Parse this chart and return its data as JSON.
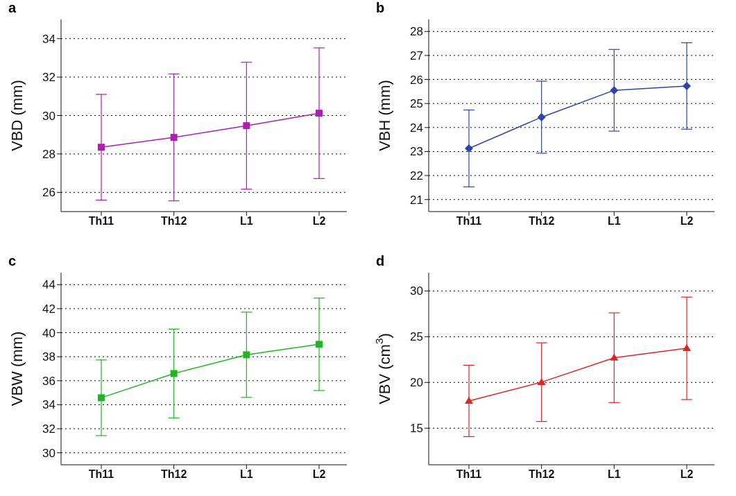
{
  "chart_data": [
    {
      "type": "line",
      "title": "a",
      "ylabel": "VBD (mm)",
      "categories": [
        "Th11",
        "Th12",
        "L1",
        "L2"
      ],
      "values": [
        28.35,
        28.86,
        29.47,
        30.12
      ],
      "errors": [
        2.75,
        3.3,
        3.3,
        3.4
      ],
      "color": "#b01eb0",
      "marker": "square",
      "ylim": [
        25,
        35
      ],
      "yticks": [
        26,
        28,
        30,
        32,
        34
      ],
      "grid": "y",
      "legend": false
    },
    {
      "type": "line",
      "title": "b",
      "ylabel": "VBH (mm)",
      "categories": [
        "Th11",
        "Th12",
        "L1",
        "L2"
      ],
      "values": [
        23.13,
        24.43,
        25.55,
        25.73
      ],
      "errors": [
        1.6,
        1.5,
        1.7,
        1.8
      ],
      "color": "#2e44a8",
      "marker": "diamond",
      "ylim": [
        20.5,
        28.5
      ],
      "yticks": [
        21,
        22,
        23,
        24,
        25,
        26,
        27,
        28
      ],
      "grid": "y",
      "legend": false
    },
    {
      "type": "line",
      "title": "c",
      "ylabel": "VBW (mm)",
      "categories": [
        "Th11",
        "Th12",
        "L1",
        "L2"
      ],
      "values": [
        34.58,
        36.6,
        38.16,
        39.03
      ],
      "errors": [
        3.15,
        3.7,
        3.55,
        3.85
      ],
      "color": "#22b522",
      "marker": "square",
      "ylim": [
        29,
        45
      ],
      "yticks": [
        30,
        32,
        34,
        36,
        38,
        40,
        42,
        44
      ],
      "grid": "y",
      "legend": false
    },
    {
      "type": "line",
      "title": "d",
      "ylabel": "VBV (cm$^{3}$)",
      "categories": [
        "Th11",
        "Th12",
        "L1",
        "L2"
      ],
      "values": [
        17.98,
        20.03,
        22.7,
        23.73
      ],
      "errors": [
        3.9,
        4.3,
        4.9,
        5.6
      ],
      "color": "#e02424",
      "marker": "triangle",
      "ylim": [
        11,
        32
      ],
      "yticks": [
        15,
        20,
        25,
        30
      ],
      "grid": "y",
      "legend": false
    }
  ]
}
